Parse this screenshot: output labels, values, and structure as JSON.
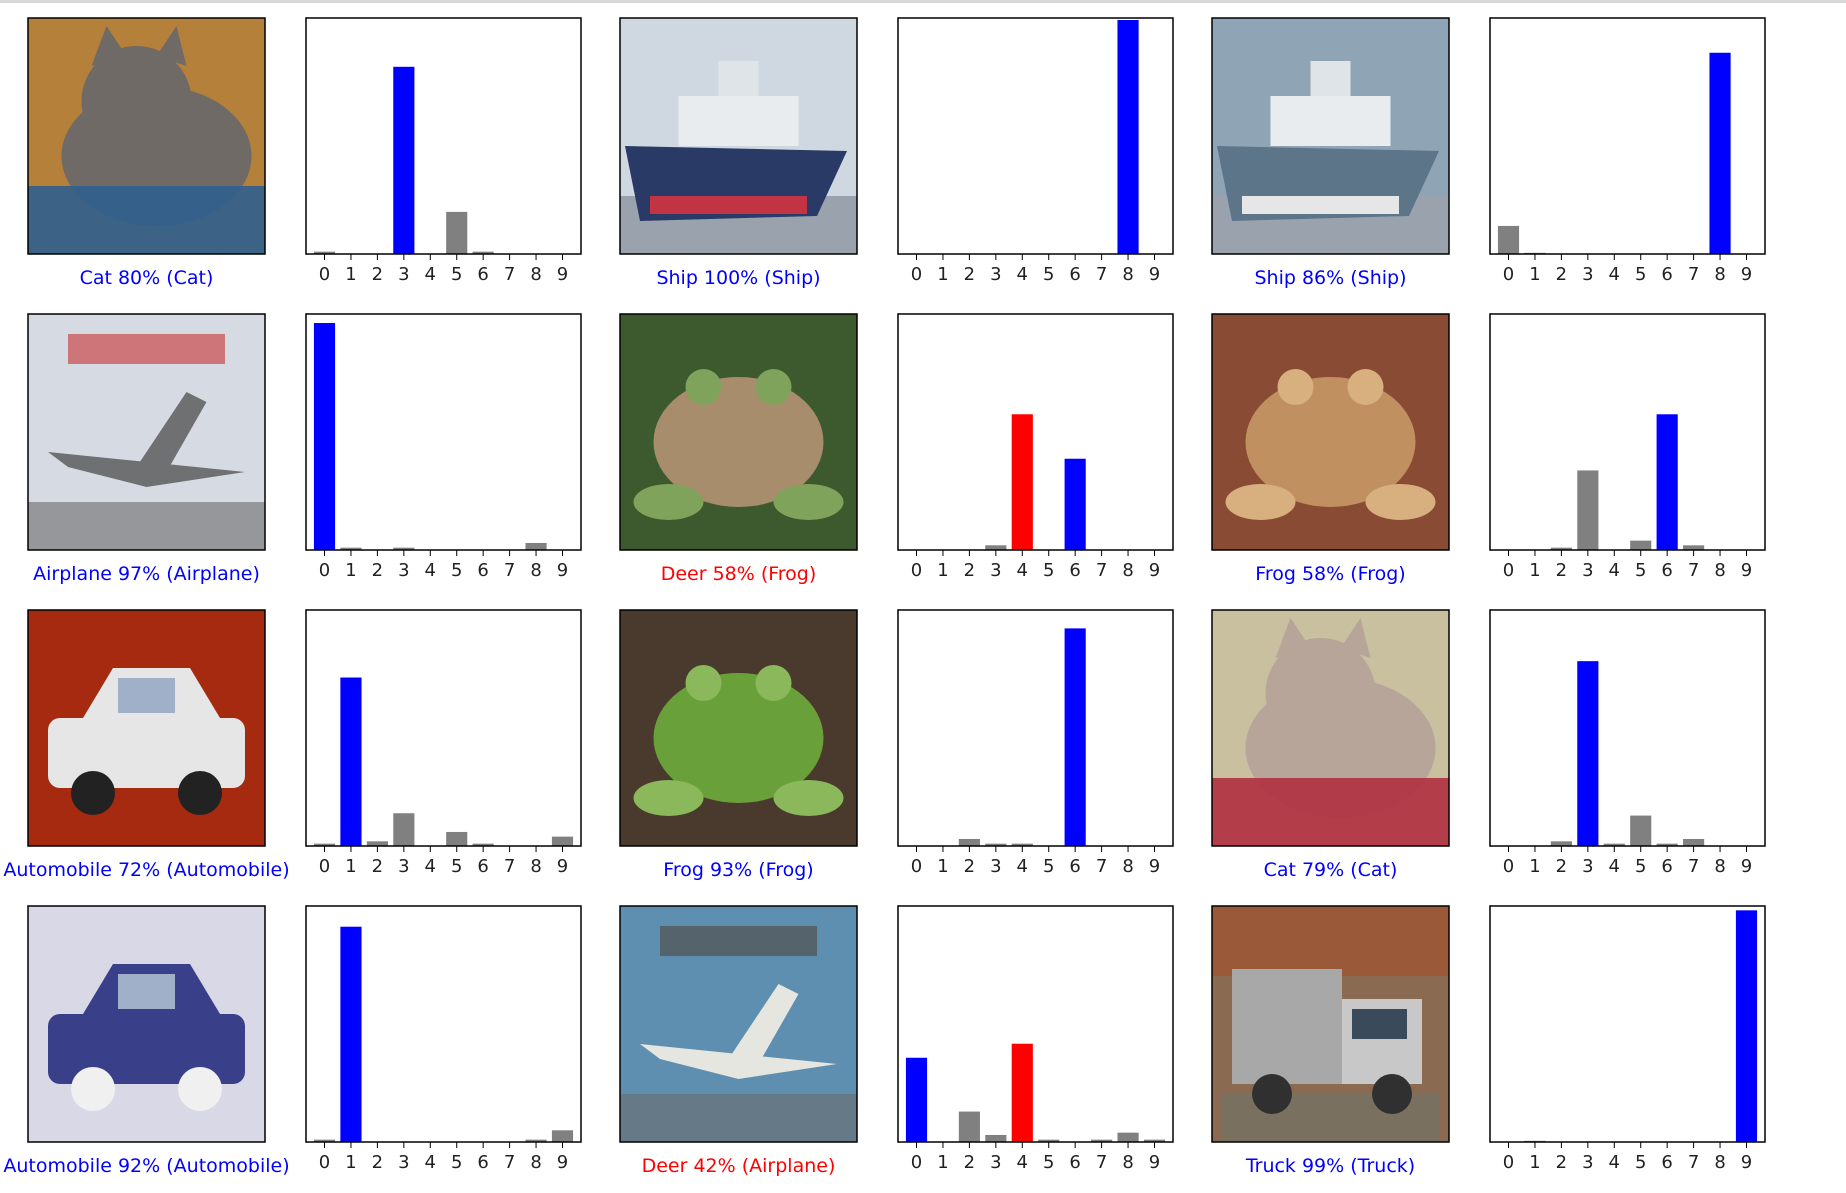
{
  "colors": {
    "correct": "#0000ff",
    "wrong": "#ff0000",
    "other": "#808080",
    "axes": "#000000"
  },
  "tick_labels": [
    "0",
    "1",
    "2",
    "3",
    "4",
    "5",
    "6",
    "7",
    "8",
    "9"
  ],
  "chart_data": [
    {
      "type": "image",
      "caption": "Cat 80% (Cat)",
      "caption_status": "correct",
      "image_subject": "cat",
      "image_palette": {
        "bg": "#b5813a",
        "main": "#6f6a66",
        "accent": "#2f5f8e"
      }
    },
    {
      "type": "bar",
      "categories": [
        "0",
        "1",
        "2",
        "3",
        "4",
        "5",
        "6",
        "7",
        "8",
        "9"
      ],
      "values": [
        0.01,
        0,
        0,
        0.8,
        0,
        0.18,
        0.01,
        0,
        0,
        0
      ],
      "predicted": 3,
      "true_label": 3,
      "ylim": [
        0,
        1
      ]
    },
    {
      "type": "image",
      "caption": "Ship 100% (Ship)",
      "caption_status": "correct",
      "image_subject": "ship",
      "image_palette": {
        "bg": "#cfd7e0",
        "main": "#2a3a66",
        "accent": "#c23344"
      }
    },
    {
      "type": "bar",
      "categories": [
        "0",
        "1",
        "2",
        "3",
        "4",
        "5",
        "6",
        "7",
        "8",
        "9"
      ],
      "values": [
        0,
        0,
        0,
        0,
        0,
        0,
        0,
        0,
        1.0,
        0
      ],
      "predicted": 8,
      "true_label": 8,
      "ylim": [
        0,
        1
      ]
    },
    {
      "type": "image",
      "caption": "Ship 86% (Ship)",
      "caption_status": "correct",
      "image_subject": "ship",
      "image_palette": {
        "bg": "#8fa4b4",
        "main": "#5d7588",
        "accent": "#e6e6e6"
      }
    },
    {
      "type": "bar",
      "categories": [
        "0",
        "1",
        "2",
        "3",
        "4",
        "5",
        "6",
        "7",
        "8",
        "9"
      ],
      "values": [
        0.12,
        0.005,
        0,
        0,
        0,
        0,
        0,
        0,
        0.86,
        0
      ],
      "predicted": 8,
      "true_label": 8,
      "ylim": [
        0,
        1
      ]
    },
    {
      "type": "image",
      "caption": "Airplane 97% (Airplane)",
      "caption_status": "correct",
      "image_subject": "airplane",
      "image_palette": {
        "bg": "#d6dae3",
        "main": "#6f7072",
        "accent": "#c94a4a"
      }
    },
    {
      "type": "bar",
      "categories": [
        "0",
        "1",
        "2",
        "3",
        "4",
        "5",
        "6",
        "7",
        "8",
        "9"
      ],
      "values": [
        0.97,
        0.01,
        0,
        0.01,
        0,
        0,
        0,
        0,
        0.03,
        0
      ],
      "predicted": 0,
      "true_label": 0,
      "ylim": [
        0,
        1
      ]
    },
    {
      "type": "image",
      "caption": "Deer 58% (Frog)",
      "caption_status": "wrong",
      "image_subject": "frog",
      "image_palette": {
        "bg": "#3d5a2e",
        "main": "#a88d6d",
        "accent": "#7fa35a"
      }
    },
    {
      "type": "bar",
      "categories": [
        "0",
        "1",
        "2",
        "3",
        "4",
        "5",
        "6",
        "7",
        "8",
        "9"
      ],
      "values": [
        0,
        0,
        0,
        0.02,
        0.58,
        0,
        0.39,
        0,
        0,
        0
      ],
      "predicted": 4,
      "true_label": 6,
      "ylim": [
        0,
        1
      ]
    },
    {
      "type": "image",
      "caption": "Frog 58% (Frog)",
      "caption_status": "correct",
      "image_subject": "frog",
      "image_palette": {
        "bg": "#8a4b35",
        "main": "#c09060",
        "accent": "#d8b080"
      }
    },
    {
      "type": "bar",
      "categories": [
        "0",
        "1",
        "2",
        "3",
        "4",
        "5",
        "6",
        "7",
        "8",
        "9"
      ],
      "values": [
        0,
        0,
        0.01,
        0.34,
        0,
        0.04,
        0.58,
        0.02,
        0,
        0
      ],
      "predicted": 6,
      "true_label": 6,
      "ylim": [
        0,
        1
      ]
    },
    {
      "type": "image",
      "caption": "Automobile 72% (Automobile)",
      "caption_status": "correct",
      "image_subject": "automobile",
      "image_palette": {
        "bg": "#a52a10",
        "main": "#e6e6e6",
        "accent": "#222222"
      }
    },
    {
      "type": "bar",
      "categories": [
        "0",
        "1",
        "2",
        "3",
        "4",
        "5",
        "6",
        "7",
        "8",
        "9"
      ],
      "values": [
        0.01,
        0.72,
        0.02,
        0.14,
        0,
        0.06,
        0.01,
        0,
        0,
        0.04
      ],
      "predicted": 1,
      "true_label": 1,
      "ylim": [
        0,
        1
      ]
    },
    {
      "type": "image",
      "caption": "Frog 93% (Frog)",
      "caption_status": "correct",
      "image_subject": "frog",
      "image_palette": {
        "bg": "#4a3a2e",
        "main": "#6aa03a",
        "accent": "#8ab85a"
      }
    },
    {
      "type": "bar",
      "categories": [
        "0",
        "1",
        "2",
        "3",
        "4",
        "5",
        "6",
        "7",
        "8",
        "9"
      ],
      "values": [
        0,
        0,
        0.03,
        0.01,
        0.01,
        0,
        0.93,
        0,
        0,
        0
      ],
      "predicted": 6,
      "true_label": 6,
      "ylim": [
        0,
        1
      ]
    },
    {
      "type": "image",
      "caption": "Cat 79% (Cat)",
      "caption_status": "correct",
      "image_subject": "cat",
      "image_palette": {
        "bg": "#c9c0a0",
        "main": "#b6a598",
        "accent": "#b03040"
      }
    },
    {
      "type": "bar",
      "categories": [
        "0",
        "1",
        "2",
        "3",
        "4",
        "5",
        "6",
        "7",
        "8",
        "9"
      ],
      "values": [
        0,
        0,
        0.02,
        0.79,
        0.01,
        0.13,
        0.01,
        0.03,
        0,
        0
      ],
      "predicted": 3,
      "true_label": 3,
      "ylim": [
        0,
        1
      ]
    },
    {
      "type": "image",
      "caption": "Automobile 92% (Automobile)",
      "caption_status": "correct",
      "image_subject": "automobile",
      "image_palette": {
        "bg": "#d8d8e6",
        "main": "#3a3f8a",
        "accent": "#f0f0f0"
      }
    },
    {
      "type": "bar",
      "categories": [
        "0",
        "1",
        "2",
        "3",
        "4",
        "5",
        "6",
        "7",
        "8",
        "9"
      ],
      "values": [
        0.01,
        0.92,
        0,
        0,
        0,
        0,
        0,
        0,
        0.01,
        0.05
      ],
      "predicted": 1,
      "true_label": 1,
      "ylim": [
        0,
        1
      ]
    },
    {
      "type": "image",
      "caption": "Deer 42% (Airplane)",
      "caption_status": "wrong",
      "image_subject": "airplane",
      "image_palette": {
        "bg": "#5f8fb0",
        "main": "#e6e6e0",
        "accent": "#505050"
      }
    },
    {
      "type": "bar",
      "categories": [
        "0",
        "1",
        "2",
        "3",
        "4",
        "5",
        "6",
        "7",
        "8",
        "9"
      ],
      "values": [
        0.36,
        0,
        0.13,
        0.03,
        0.42,
        0.01,
        0,
        0.01,
        0.04,
        0.01
      ],
      "predicted": 4,
      "true_label": 0,
      "ylim": [
        0,
        1
      ]
    },
    {
      "type": "image",
      "caption": "Truck 99% (Truck)",
      "caption_status": "correct",
      "image_subject": "truck",
      "image_palette": {
        "bg": "#8a6a50",
        "main": "#a8a8a8",
        "accent": "#303030"
      }
    },
    {
      "type": "bar",
      "categories": [
        "0",
        "1",
        "2",
        "3",
        "4",
        "5",
        "6",
        "7",
        "8",
        "9"
      ],
      "values": [
        0,
        0.005,
        0,
        0,
        0,
        0,
        0,
        0,
        0,
        0.99
      ],
      "predicted": 9,
      "true_label": 9,
      "ylim": [
        0,
        1
      ]
    }
  ]
}
